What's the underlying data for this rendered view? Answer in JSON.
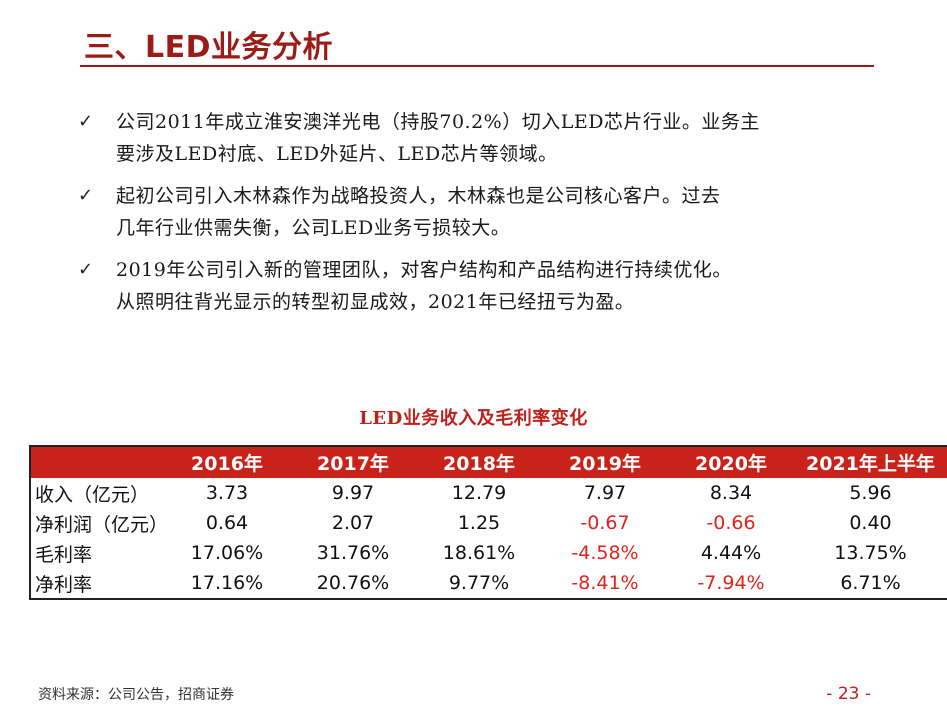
{
  "slide": {
    "title": "三、LED业务分析",
    "accent_color": "#9b1b16"
  },
  "bullets": [
    {
      "icon": "check-icon",
      "lines": [
        "公司2011年成立淮安澳洋光电（持股70.2%）切入LED芯片行业。业务主",
        "要涉及LED衬底、LED外延片、LED芯片等领域。"
      ]
    },
    {
      "icon": "check-icon",
      "lines": [
        "起初公司引入木林森作为战略投资人，木林森也是公司核心客户。过去",
        "几年行业供需失衡，公司LED业务亏损较大。"
      ]
    },
    {
      "icon": "check-icon",
      "lines": [
        "2019年公司引入新的管理团队，对客户结构和产品结构进行持续优化。",
        "从照明往背光显示的转型初显成效，2021年已经扭亏为盈。"
      ]
    }
  ],
  "table": {
    "title": "LED业务收入及毛利率变化",
    "header_color": "#c8221b",
    "negative_color": "#e3231b",
    "columns": [
      "",
      "2016年",
      "2017年",
      "2018年",
      "2019年",
      "2020年",
      "2021年上半年"
    ],
    "rows": [
      {
        "label": "收入（亿元）",
        "cells": [
          "3.73",
          "9.97",
          "12.79",
          "7.97",
          "8.34",
          "5.96"
        ]
      },
      {
        "label": "净利润（亿元）",
        "cells": [
          "0.64",
          "2.07",
          "1.25",
          "-0.67",
          "-0.66",
          "0.40"
        ]
      },
      {
        "label": "毛利率",
        "cells": [
          "17.06%",
          "31.76%",
          "18.61%",
          "-4.58%",
          "4.44%",
          "13.75%"
        ]
      },
      {
        "label": "净利率",
        "cells": [
          "17.16%",
          "20.76%",
          "9.77%",
          "-8.41%",
          "-7.94%",
          "6.71%"
        ]
      }
    ]
  },
  "footer": {
    "source": "资料来源：公司公告，招商证券",
    "page_number": "- 23 -"
  }
}
